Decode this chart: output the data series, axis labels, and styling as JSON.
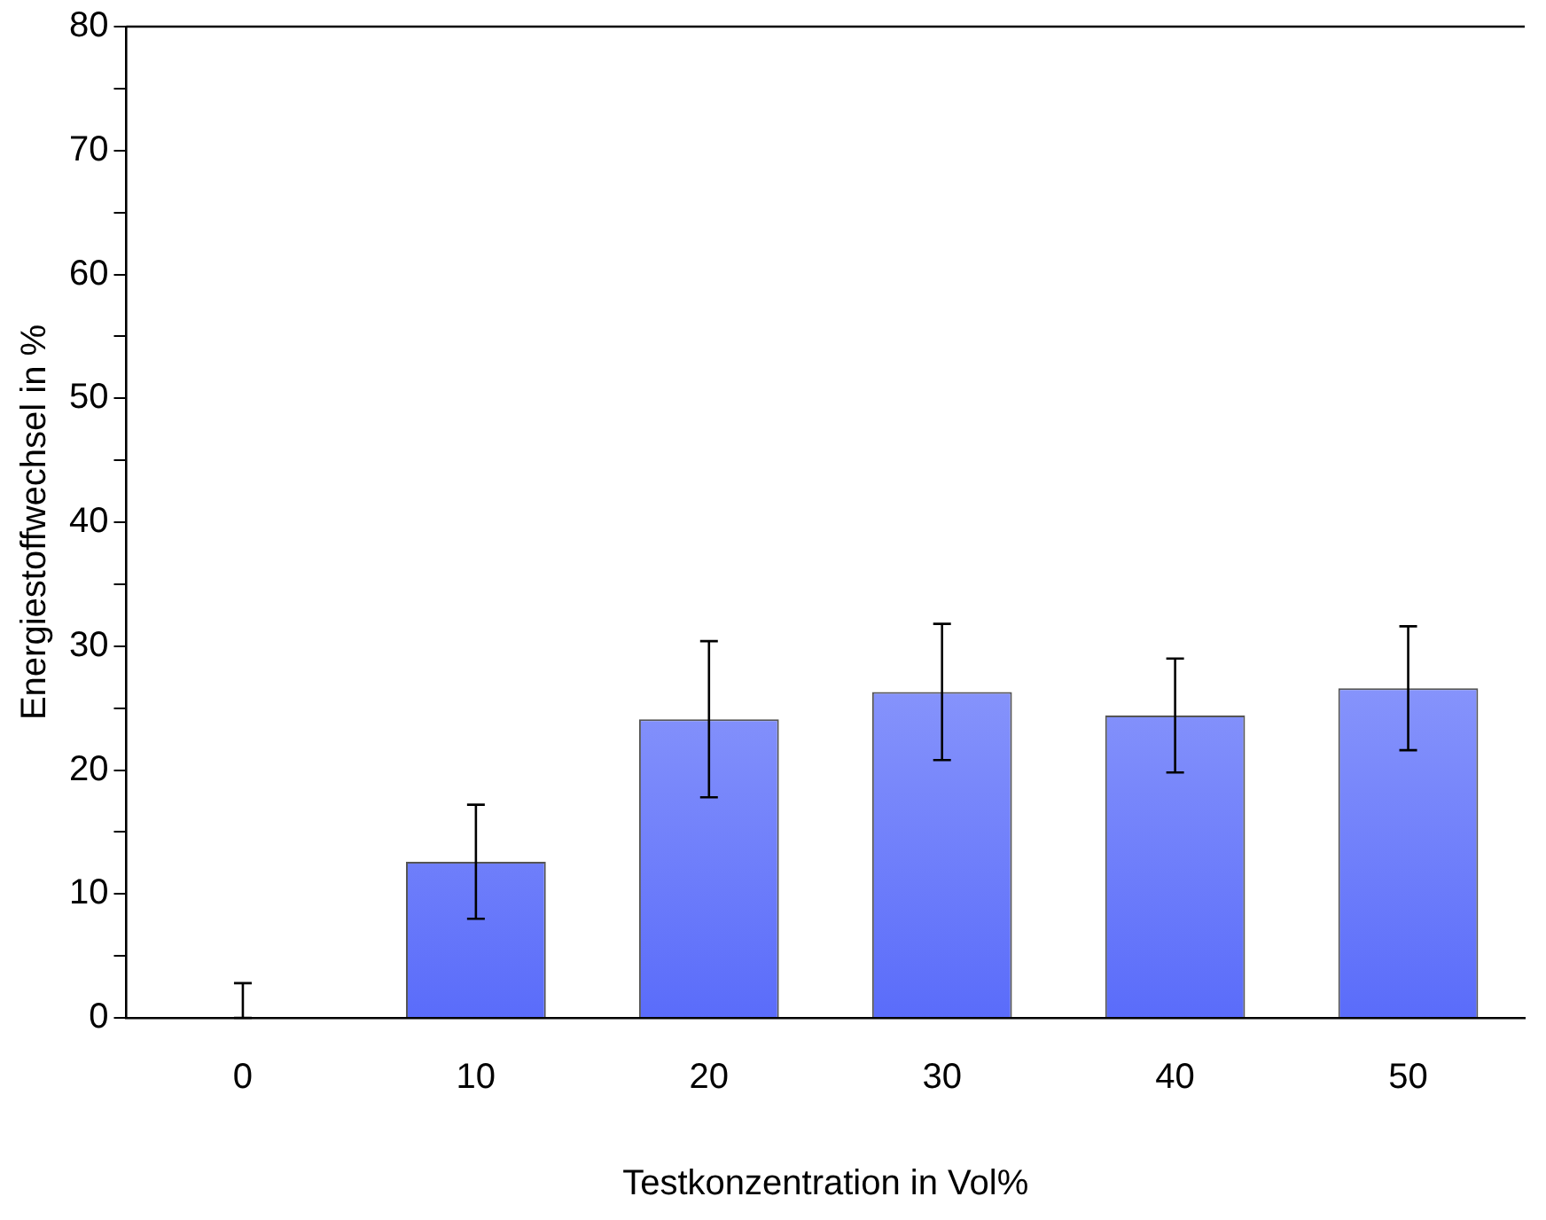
{
  "chart_data": {
    "type": "bar",
    "xlabel": "Testkonzentration in Vol%",
    "ylabel": "Energiestoffwechsel in %",
    "categories": [
      "0",
      "10",
      "20",
      "30",
      "40",
      "50"
    ],
    "values": [
      0,
      12.6,
      24.1,
      26.3,
      24.4,
      26.6
    ],
    "errors": [
      [
        0,
        2.8
      ],
      4.6,
      6.3,
      5.5,
      4.6,
      5.0
    ],
    "color": "#5a6cfa",
    "ylim": [
      0,
      80
    ],
    "yticks": [
      0,
      {
        "value": 5,
        "label": null
      },
      10,
      {
        "value": 15,
        "label": null
      },
      20,
      {
        "value": 25,
        "label": null
      },
      30,
      {
        "value": 35,
        "label": null
      },
      40,
      {
        "value": 45,
        "label": null
      },
      50,
      {
        "value": 55,
        "label": null
      },
      60,
      {
        "value": 65,
        "label": null
      },
      70,
      {
        "value": 75,
        "label": null
      },
      80
    ],
    "grid": false,
    "legend": false
  }
}
